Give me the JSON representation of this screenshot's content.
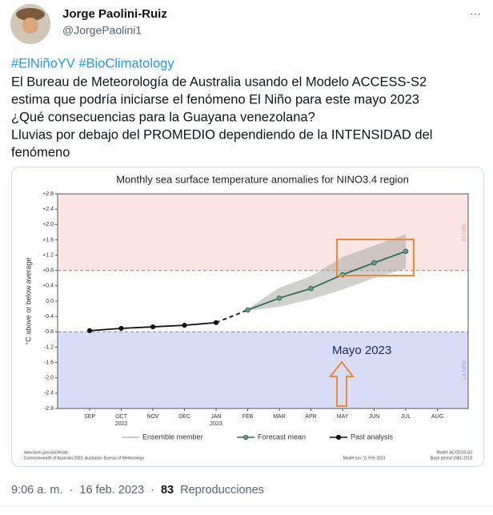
{
  "tweet": {
    "name": "Jorge Paolini-Ruiz",
    "handle": "@JorgePaolini1",
    "more": "···",
    "hashtags": "#ElNiñoYV #BioClimatology",
    "lines": [
      "El Bureau de Meteorología de Australia usando el Modelo ACCESS-S2",
      "estima que podría iniciarse el fenómeno El Niño para este mayo 2023",
      "¿Qué consecuencias para la Guayana venezolana?",
      "Lluvias por debajo del PROMEDIO dependiendo de la INTENSIDAD del",
      "fenómeno"
    ],
    "time": "9:06 a. m.",
    "separator": "·",
    "date": "16 feb. 2023",
    "views": 83,
    "views_label": "Reproducciones"
  },
  "chart_data": {
    "type": "line",
    "title": "Monthly sea surface temperature anomalies for NINO3.4 region",
    "y_label": "°C above or below average",
    "categories": [
      "SEP",
      "OCT",
      "NOV",
      "DEC",
      "JAN",
      "FEB",
      "MAR",
      "APR",
      "MAY",
      "JUN",
      "JUL",
      "AUG"
    ],
    "category_years": [
      null,
      "2022",
      null,
      null,
      "2023",
      null,
      null,
      null,
      null,
      null,
      null,
      null
    ],
    "ylim": [
      -2.8,
      2.8
    ],
    "yticks": [
      {
        "value": -2.8,
        "label": "-2.8"
      },
      {
        "value": -2.4,
        "label": "-2.4"
      },
      {
        "value": -2,
        "label": "-2.0"
      },
      {
        "value": -1.6,
        "label": "-1.6"
      },
      {
        "value": -1.2,
        "label": "-1.2"
      },
      {
        "value": -0.8,
        "label": "-0.8"
      },
      {
        "value": -0.4,
        "label": "-0.4"
      },
      {
        "value": 0,
        "label": "0.0"
      },
      {
        "value": 0.4,
        "label": "+0.4"
      },
      {
        "value": 0.8,
        "label": "+0.8"
      },
      {
        "value": 1.2,
        "label": "+1.2"
      },
      {
        "value": 1.6,
        "label": "+1.6"
      },
      {
        "value": 2,
        "label": "+2.0"
      },
      {
        "value": 2.4,
        "label": "+2.4"
      },
      {
        "value": 2.8,
        "label": "+2.8"
      }
    ],
    "thresholds": [
      0.8,
      -0.8
    ],
    "zones": [
      "El Niño",
      "La Niña"
    ],
    "series": [
      {
        "name": "Ensemble member",
        "color": "#9a9a9a",
        "values": [
          null,
          null,
          null,
          null,
          null,
          null,
          null,
          null,
          null,
          null,
          null,
          null
        ]
      },
      {
        "name": "Forecast mean",
        "color": "#2f6e5c",
        "values": [
          null,
          null,
          null,
          null,
          null,
          -0.23,
          0.08,
          0.33,
          0.69,
          1.0,
          1.3,
          null
        ]
      },
      {
        "name": "Past analysis",
        "color": "#111111",
        "values": [
          -0.77,
          -0.71,
          -0.67,
          -0.63,
          -0.56,
          null,
          null,
          null,
          null,
          null,
          null,
          null
        ]
      }
    ],
    "annotation": "Mayo 2023",
    "footer_left": [
      "www.bom.gov.au/climate",
      "Commonwealth of Australia 2023, Australian Bureau of Meteorology"
    ],
    "footer_mid": "Model run: 11 Feb 2023",
    "footer_right": [
      "Model: ACCESS-S2",
      "Base period 1981-2018"
    ]
  }
}
